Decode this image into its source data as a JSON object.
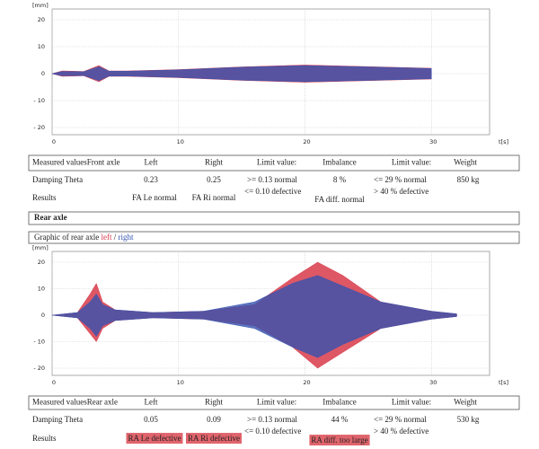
{
  "chart_data": [
    {
      "type": "area",
      "y_unit": "[mm]",
      "x_unit": "t[s]",
      "xlim": [
        0,
        34.6
      ],
      "ylim": [
        -20,
        20
      ],
      "xticks": [
        0,
        10,
        20,
        30
      ],
      "yticks": [
        20,
        10,
        0,
        {
          "value": -10,
          "label": "- 10"
        },
        {
          "value": -20,
          "label": "- 20"
        }
      ],
      "grid": true,
      "x": [
        0,
        0.8,
        2.5,
        3.7,
        4.5,
        6,
        10,
        15,
        20,
        25,
        30
      ],
      "series": [
        {
          "color": "#d83a4a",
          "values": [
            0,
            1,
            0.8,
            3,
            1,
            1,
            1.5,
            2.5,
            3.2,
            2.6,
            2
          ],
          "lower": [
            0,
            -1,
            -0.8,
            -3,
            -1,
            -1,
            -1.5,
            -2.5,
            -3.2,
            -2.6,
            -2
          ]
        },
        {
          "color": "#3553b0",
          "values": [
            0,
            0.8,
            0.7,
            2.6,
            0.9,
            0.9,
            1.4,
            2.4,
            3,
            2.5,
            1.9
          ],
          "lower": [
            0,
            -0.8,
            -0.7,
            -2.6,
            -0.9,
            -0.9,
            -1.4,
            -2.4,
            -3,
            -2.5,
            -1.9
          ]
        }
      ]
    },
    {
      "type": "area",
      "y_unit": "[mm]",
      "x_unit": "t[s]",
      "xlim": [
        0,
        34.6
      ],
      "ylim": [
        -20,
        20
      ],
      "xticks": [
        0,
        10,
        20,
        30
      ],
      "yticks": [
        20,
        10,
        0,
        {
          "value": -10,
          "label": "- 10"
        },
        {
          "value": -20,
          "label": "- 20"
        }
      ],
      "grid": true,
      "x": [
        0,
        2,
        3,
        3.5,
        4,
        5,
        8,
        12,
        16,
        19,
        21,
        23,
        26,
        30,
        32
      ],
      "series": [
        {
          "name": "left",
          "color": "#d83a4a",
          "values": [
            0,
            1,
            8,
            12,
            5,
            2,
            1,
            1.5,
            4,
            14,
            20,
            15,
            5,
            1.5,
            0.5
          ],
          "lower": [
            0,
            -1,
            -7,
            -10,
            -5,
            -2,
            -1,
            -1.5,
            -4,
            -12,
            -20,
            -14,
            -5,
            -1.5,
            -0.5
          ]
        },
        {
          "name": "right",
          "color": "#3553b0",
          "values": [
            0,
            1,
            5,
            8,
            4,
            2,
            1,
            1.5,
            5,
            12,
            15,
            11,
            5,
            1.5,
            0.5
          ],
          "lower": [
            0,
            -1,
            -5,
            -8,
            -4,
            -2,
            -1,
            -1.5,
            -5,
            -12,
            -16,
            -11,
            -5,
            -1.5,
            -0.5
          ]
        }
      ]
    }
  ],
  "front_table": {
    "header": [
      "Measured valuesFront axle",
      "Left",
      "Right",
      "Limit value:",
      "Imbalance",
      "Limit value:",
      "Weight"
    ],
    "damping": {
      "label": "Damping Theta",
      "left": "0.23",
      "right": "0.25",
      "limit1": [
        ">= 0.13 normal",
        "<= 0.10 defective"
      ],
      "imbalance": "8 %",
      "limit2": [
        "<= 29 % normal",
        "> 40 % defective"
      ],
      "weight": "850 kg"
    },
    "results": {
      "label": "Results",
      "left": "FA Le normal",
      "right": "FA Ri normal",
      "diff": "FA diff. normal"
    }
  },
  "rear_heading": "Rear axle",
  "rear_graphic_label": "Graphic of rear axle ",
  "rear_graphic_sep": " / ",
  "rear_table": {
    "header": [
      "Measured valuesRear axle",
      "Left",
      "Right",
      "Limit value:",
      "Imbalance",
      "Limit value:",
      "Weight"
    ],
    "damping": {
      "label": "Damping Theta",
      "left": "0.05",
      "right": "0.09",
      "limit1": [
        ">= 0.13 normal",
        "<= 0.10 defective"
      ],
      "imbalance": "44 %",
      "limit2": [
        "<= 29 % normal",
        "> 40 % defective"
      ],
      "weight": "530 kg"
    },
    "results": {
      "label": "Results",
      "left": "RA Le defective",
      "right": "RA Ri defective",
      "diff": "RA diff. too large"
    }
  }
}
